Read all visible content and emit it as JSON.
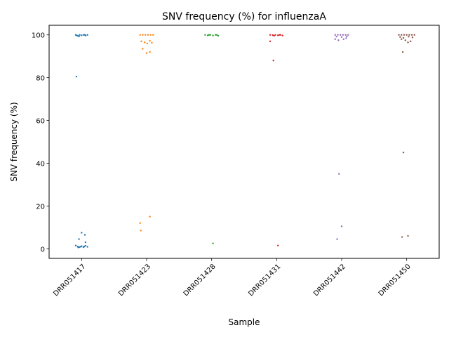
{
  "chart_data": {
    "type": "scatter",
    "title": "SNV frequency (%) for influenzaA",
    "xlabel": "Sample",
    "ylabel": "SNV frequency (%)",
    "categories": [
      "DRR051417",
      "DRR051423",
      "DRR051428",
      "DRR051431",
      "DRR051442",
      "DRR051450"
    ],
    "ylim": [
      -4.5,
      104.5
    ],
    "yticks": [
      0,
      20,
      40,
      60,
      80,
      100
    ],
    "grid": false,
    "legend": "none",
    "series": [
      {
        "category": "DRR051417",
        "color": "#1f77b4",
        "points": [
          {
            "x": -0.09,
            "y": 100
          },
          {
            "x": -0.06,
            "y": 99.6
          },
          {
            "x": -0.03,
            "y": 100
          },
          {
            "x": 0.0,
            "y": 99.8
          },
          {
            "x": 0.03,
            "y": 100
          },
          {
            "x": 0.06,
            "y": 99.7
          },
          {
            "x": 0.09,
            "y": 100
          },
          {
            "x": -0.04,
            "y": 99.3
          },
          {
            "x": 0.05,
            "y": 100
          },
          {
            "x": -0.08,
            "y": 99.8
          },
          {
            "x": -0.08,
            "y": 80.5
          },
          {
            "x": 0.0,
            "y": 7.5
          },
          {
            "x": 0.05,
            "y": 6.5
          },
          {
            "x": -0.04,
            "y": 4.5
          },
          {
            "x": 0.06,
            "y": 3.0
          },
          {
            "x": -0.09,
            "y": 1.5
          },
          {
            "x": -0.06,
            "y": 1.0
          },
          {
            "x": -0.03,
            "y": 0.8
          },
          {
            "x": 0.0,
            "y": 1.2
          },
          {
            "x": 0.03,
            "y": 0.7
          },
          {
            "x": 0.06,
            "y": 1.4
          },
          {
            "x": 0.09,
            "y": 0.9
          },
          {
            "x": -0.05,
            "y": 0.6
          },
          {
            "x": 0.04,
            "y": 1.1
          },
          {
            "x": -0.01,
            "y": 1.0
          }
        ]
      },
      {
        "category": "DRR051423",
        "color": "#ff7f0e",
        "points": [
          {
            "x": -0.1,
            "y": 100
          },
          {
            "x": -0.06,
            "y": 100
          },
          {
            "x": -0.02,
            "y": 100
          },
          {
            "x": 0.02,
            "y": 100
          },
          {
            "x": 0.06,
            "y": 100
          },
          {
            "x": 0.1,
            "y": 100
          },
          {
            "x": -0.08,
            "y": 97.0
          },
          {
            "x": -0.03,
            "y": 96.5
          },
          {
            "x": 0.01,
            "y": 96.0
          },
          {
            "x": 0.05,
            "y": 97.2
          },
          {
            "x": 0.08,
            "y": 96.3
          },
          {
            "x": -0.06,
            "y": 93.5
          },
          {
            "x": 0.0,
            "y": 91.5
          },
          {
            "x": 0.05,
            "y": 92.0
          },
          {
            "x": -0.1,
            "y": 12.0
          },
          {
            "x": 0.05,
            "y": 15.0
          },
          {
            "x": -0.09,
            "y": 8.5
          }
        ]
      },
      {
        "category": "DRR051428",
        "color": "#2ca02c",
        "points": [
          {
            "x": -0.1,
            "y": 100
          },
          {
            "x": -0.06,
            "y": 99.8
          },
          {
            "x": -0.02,
            "y": 100
          },
          {
            "x": 0.02,
            "y": 99.7
          },
          {
            "x": 0.06,
            "y": 100
          },
          {
            "x": 0.1,
            "y": 99.6
          },
          {
            "x": 0.08,
            "y": 100
          },
          {
            "x": -0.04,
            "y": 100
          },
          {
            "x": 0.02,
            "y": 2.5
          }
        ]
      },
      {
        "category": "DRR051431",
        "color": "#d62728",
        "points": [
          {
            "x": -0.1,
            "y": 100
          },
          {
            "x": -0.06,
            "y": 99.9
          },
          {
            "x": -0.02,
            "y": 100
          },
          {
            "x": 0.02,
            "y": 99.8
          },
          {
            "x": 0.06,
            "y": 100
          },
          {
            "x": 0.09,
            "y": 99.7
          },
          {
            "x": -0.04,
            "y": 99.6
          },
          {
            "x": 0.04,
            "y": 100
          },
          {
            "x": -0.1,
            "y": 97.0
          },
          {
            "x": -0.05,
            "y": 88.0
          },
          {
            "x": 0.02,
            "y": 1.5
          }
        ]
      },
      {
        "category": "DRR051442",
        "color": "#9467bd",
        "points": [
          {
            "x": -0.1,
            "y": 100
          },
          {
            "x": -0.06,
            "y": 100
          },
          {
            "x": -0.02,
            "y": 100
          },
          {
            "x": 0.02,
            "y": 100
          },
          {
            "x": 0.06,
            "y": 100
          },
          {
            "x": 0.1,
            "y": 100
          },
          {
            "x": -0.08,
            "y": 99.2
          },
          {
            "x": 0.0,
            "y": 99.0
          },
          {
            "x": 0.08,
            "y": 99.3
          },
          {
            "x": -0.1,
            "y": 98.0
          },
          {
            "x": -0.05,
            "y": 97.5
          },
          {
            "x": 0.03,
            "y": 98.0
          },
          {
            "x": 0.07,
            "y": 98.5
          },
          {
            "x": -0.04,
            "y": 35.0
          },
          {
            "x": 0.0,
            "y": 10.5
          },
          {
            "x": -0.07,
            "y": 4.5
          }
        ]
      },
      {
        "category": "DRR051450",
        "color": "#8c564b",
        "points": [
          {
            "x": -0.12,
            "y": 100
          },
          {
            "x": -0.08,
            "y": 100
          },
          {
            "x": -0.04,
            "y": 100
          },
          {
            "x": 0.0,
            "y": 100
          },
          {
            "x": 0.04,
            "y": 100
          },
          {
            "x": 0.08,
            "y": 100
          },
          {
            "x": 0.12,
            "y": 100
          },
          {
            "x": -0.1,
            "y": 99.0
          },
          {
            "x": -0.05,
            "y": 98.6
          },
          {
            "x": 0.03,
            "y": 99.2
          },
          {
            "x": 0.09,
            "y": 98.8
          },
          {
            "x": -0.08,
            "y": 98.0
          },
          {
            "x": -0.02,
            "y": 97.5
          },
          {
            "x": 0.06,
            "y": 97.0
          },
          {
            "x": 0.02,
            "y": 96.5
          },
          {
            "x": -0.06,
            "y": 92.0
          },
          {
            "x": -0.05,
            "y": 45.0
          },
          {
            "x": 0.02,
            "y": 6.0
          },
          {
            "x": -0.07,
            "y": 5.5
          }
        ]
      }
    ]
  }
}
